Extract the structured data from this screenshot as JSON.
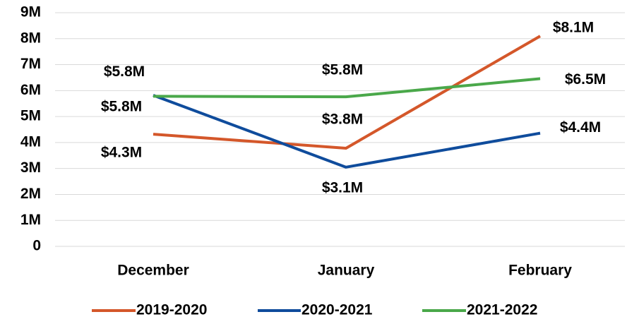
{
  "chart_data": {
    "type": "line",
    "categories": [
      "December",
      "January",
      "February"
    ],
    "series": [
      {
        "name": "2019-2020",
        "color": "#d4572a",
        "values": [
          4320000,
          3780000,
          8100000
        ],
        "value_labels": [
          "$4.3M",
          "$3.8M",
          "$8.1M"
        ]
      },
      {
        "name": "2020-2021",
        "color": "#0f4c9c",
        "values": [
          5820000,
          3050000,
          4360000
        ],
        "value_labels": [
          "$5.8M",
          "$3.1M",
          "$4.4M"
        ]
      },
      {
        "name": "2021-2022",
        "color": "#4aa84a",
        "values": [
          5780000,
          5760000,
          6460000
        ],
        "value_labels": [
          "$5.8M",
          "$5.8M",
          "$6.5M"
        ]
      }
    ],
    "ylim": [
      0,
      9000000
    ],
    "yticks": [
      0,
      {
        "value": 1000000,
        "label": "1M"
      },
      {
        "value": 2000000,
        "label": "2M"
      },
      {
        "value": 3000000,
        "label": "3M"
      },
      {
        "value": 4000000,
        "label": "4M"
      },
      {
        "value": 5000000,
        "label": "5M"
      },
      {
        "value": 6000000,
        "label": "6M"
      },
      {
        "value": 7000000,
        "label": "7M"
      },
      {
        "value": 8000000,
        "label": "8M"
      },
      {
        "value": 9000000,
        "label": "9M"
      }
    ],
    "grid": true,
    "legend": "bottom"
  }
}
